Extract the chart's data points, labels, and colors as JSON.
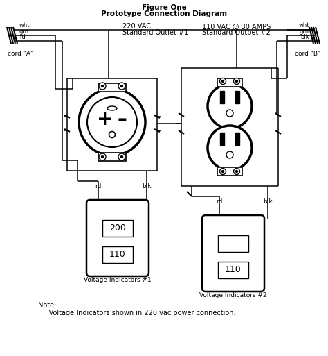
{
  "title_line1": "Figure One",
  "title_line2": "Prototype Connection Diagram",
  "cord_a_label": "cord \"A\"",
  "cord_b_label": "cord \"B\"",
  "outlet1_label_line1": "220 VAC",
  "outlet1_label_line2": "Standard Outlet #1",
  "outlet2_label_line1": "110 VAC @ 30 AMPS",
  "outlet2_label_line2": "Standard Outpet #2",
  "volt_ind1_label": "Voltage Indicators #1",
  "volt_ind2_label": "Voltage Indicators #2",
  "volt1_top": "200",
  "volt1_bot": "110",
  "volt2_bot": "110",
  "note_line1": "Note:",
  "note_line2": "     Voltage Indicators shown in 220 vac power connection.",
  "bg_color": "#ffffff",
  "figw": 4.74,
  "figh": 5.13,
  "dpi": 100
}
